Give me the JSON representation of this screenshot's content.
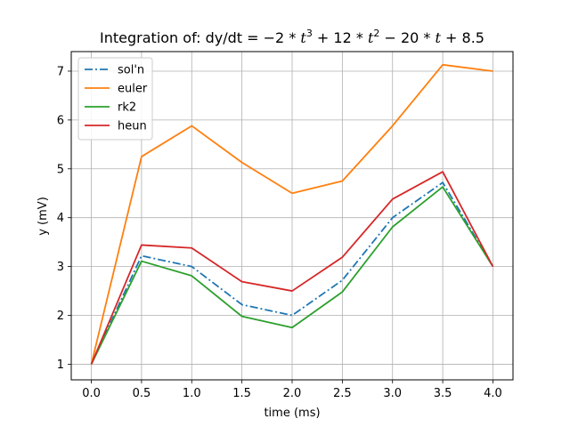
{
  "chart_data": {
    "type": "line",
    "title": {
      "prefix": "Integration of:  dy/dt = ",
      "parts": [
        {
          "t": "−2 * "
        },
        {
          "t": "t",
          "math": true
        },
        {
          "t": "3",
          "sup": true
        },
        {
          "t": " + 12 * "
        },
        {
          "t": "t",
          "math": true
        },
        {
          "t": "2",
          "sup": true
        },
        {
          "t": " − 20 * "
        },
        {
          "t": "t",
          "math": true
        },
        {
          "t": " + 8.5"
        }
      ]
    },
    "xlabel": "time (ms)",
    "ylabel": "y (mV)",
    "xlim": [
      -0.2,
      4.2
    ],
    "ylim": [
      0.68,
      7.4
    ],
    "xticks": [
      "0.0",
      "0.5",
      "1.0",
      "1.5",
      "2.0",
      "2.5",
      "3.0",
      "3.5",
      "4.0"
    ],
    "yticks": [
      "1",
      "2",
      "3",
      "4",
      "5",
      "6",
      "7"
    ],
    "grid": true,
    "legend_position": "top-left",
    "x": [
      0.0,
      0.5,
      1.0,
      1.5,
      2.0,
      2.5,
      3.0,
      3.5,
      4.0
    ],
    "series": [
      {
        "name": "sol'n",
        "color": "#1f77b4",
        "dash": "dashdot",
        "values": [
          1.0,
          3.22,
          3.0,
          2.22,
          2.0,
          2.72,
          4.0,
          4.72,
          3.0
        ]
      },
      {
        "name": "euler",
        "color": "#ff7f0e",
        "dash": "solid",
        "values": [
          1.0,
          5.25,
          5.88,
          5.13,
          4.5,
          4.75,
          5.88,
          7.13,
          7.0
        ]
      },
      {
        "name": "rk2",
        "color": "#2ca02c",
        "dash": "solid",
        "values": [
          1.0,
          3.11,
          2.81,
          1.98,
          1.75,
          2.48,
          3.81,
          4.63,
          3.0
        ]
      },
      {
        "name": "heun",
        "color": "#d62728",
        "dash": "solid",
        "values": [
          1.0,
          3.44,
          3.38,
          2.69,
          2.5,
          3.19,
          4.38,
          4.94,
          3.0
        ]
      }
    ]
  }
}
